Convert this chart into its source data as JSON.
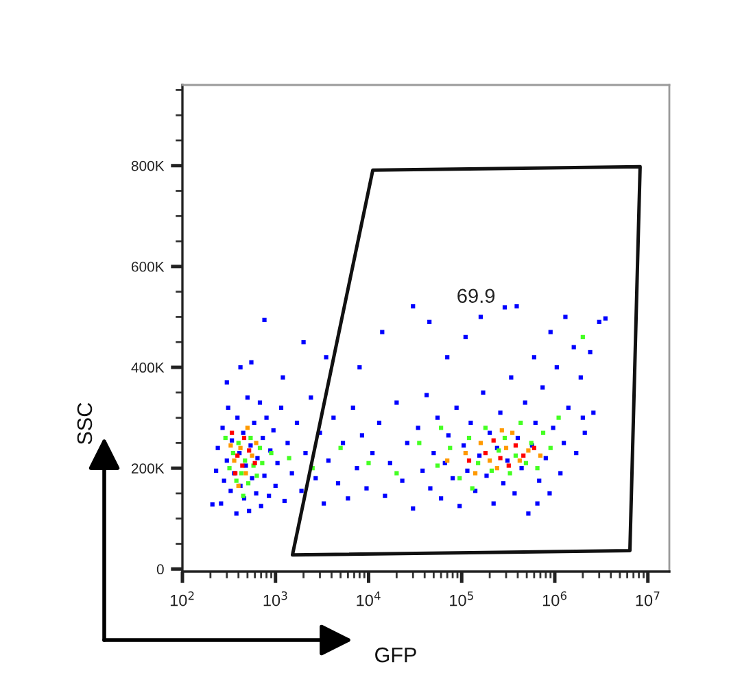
{
  "chart_data": {
    "type": "scatter",
    "xlabel": "GFP",
    "ylabel": "SSC",
    "log": "x",
    "marker": "square",
    "xlim": [
      100,
      17000000
    ],
    "ylim": [
      -5000,
      960000
    ],
    "xticks": [
      {
        "value": 100,
        "label": "10$^{2}$"
      },
      {
        "value": 1000,
        "label": "10$^{3}$"
      },
      {
        "value": 10000,
        "label": "10$^{4}$"
      },
      {
        "value": 100000,
        "label": "10$^{5}$"
      },
      {
        "value": 1000000,
        "label": "10$^{6}$"
      },
      {
        "value": 10000000,
        "label": "10$^{7}$"
      },
      {
        "value": 200,
        "label": null
      },
      {
        "value": 300,
        "label": null
      },
      {
        "value": 400,
        "label": null
      },
      {
        "value": 500,
        "label": null
      },
      {
        "value": 600,
        "label": null
      },
      {
        "value": 700,
        "label": null
      },
      {
        "value": 800,
        "label": null
      },
      {
        "value": 900,
        "label": null
      },
      {
        "value": 2000,
        "label": null
      },
      {
        "value": 3000,
        "label": null
      },
      {
        "value": 4000,
        "label": null
      },
      {
        "value": 5000,
        "label": null
      },
      {
        "value": 6000,
        "label": null
      },
      {
        "value": 7000,
        "label": null
      },
      {
        "value": 8000,
        "label": null
      },
      {
        "value": 9000,
        "label": null
      },
      {
        "value": 20000,
        "label": null
      },
      {
        "value": 30000,
        "label": null
      },
      {
        "value": 40000,
        "label": null
      },
      {
        "value": 50000,
        "label": null
      },
      {
        "value": 60000,
        "label": null
      },
      {
        "value": 70000,
        "label": null
      },
      {
        "value": 80000,
        "label": null
      },
      {
        "value": 90000,
        "label": null
      },
      {
        "value": 200000,
        "label": null
      },
      {
        "value": 300000,
        "label": null
      },
      {
        "value": 400000,
        "label": null
      },
      {
        "value": 500000,
        "label": null
      },
      {
        "value": 600000,
        "label": null
      },
      {
        "value": 700000,
        "label": null
      },
      {
        "value": 800000,
        "label": null
      },
      {
        "value": 900000,
        "label": null
      },
      {
        "value": 2000000,
        "label": null
      },
      {
        "value": 3000000,
        "label": null
      },
      {
        "value": 4000000,
        "label": null
      },
      {
        "value": 5000000,
        "label": null
      },
      {
        "value": 6000000,
        "label": null
      },
      {
        "value": 7000000,
        "label": null
      },
      {
        "value": 8000000,
        "label": null
      },
      {
        "value": 9000000,
        "label": null
      }
    ],
    "yticks": [
      0,
      {
        "value": 200000,
        "label": "200K"
      },
      {
        "value": 400000,
        "label": "400K"
      },
      {
        "value": 600000,
        "label": "600K"
      },
      {
        "value": 800000,
        "label": "800K"
      },
      {
        "value": 50000,
        "label": null
      },
      {
        "value": 100000,
        "label": null
      },
      {
        "value": 150000,
        "label": null
      },
      {
        "value": 250000,
        "label": null
      },
      {
        "value": 300000,
        "label": null
      },
      {
        "value": 350000,
        "label": null
      },
      {
        "value": 450000,
        "label": null
      },
      {
        "value": 500000,
        "label": null
      },
      {
        "value": 550000,
        "label": null
      },
      {
        "value": 650000,
        "label": null
      },
      {
        "value": 700000,
        "label": null
      },
      {
        "value": 750000,
        "label": null
      },
      {
        "value": 850000,
        "label": null
      },
      {
        "value": 900000,
        "label": null
      },
      {
        "value": 950000,
        "label": null
      }
    ],
    "annotations": [
      "69.9"
    ],
    "series": [
      {
        "color": "#0000ff",
        "x": [
          210,
          230,
          240,
          260,
          270,
          280,
          300,
          310,
          330,
          340,
          360,
          380,
          390,
          410,
          420,
          450,
          460,
          480,
          500,
          520,
          540,
          560,
          590,
          620,
          640,
          680,
          700,
          730,
          760,
          800,
          850,
          880,
          950,
          1000,
          1050,
          1150,
          1250,
          1350,
          1500,
          1700,
          1900,
          2100,
          2400,
          2700,
          3000,
          3300,
          3700,
          4200,
          4700,
          5300,
          6000,
          6800,
          7500,
          8500,
          9500,
          11000,
          13000,
          15000,
          17000,
          20000,
          23000,
          26000,
          30000,
          34000,
          38000,
          42000,
          46000,
          50000,
          55000,
          60000,
          66000,
          72000,
          80000,
          88000,
          95000,
          105000,
          115000,
          125000,
          140000,
          155000,
          170000,
          185000,
          200000,
          220000,
          240000,
          260000,
          280000,
          310000,
          340000,
          370000,
          400000,
          440000,
          480000,
          520000,
          570000,
          620000,
          680000,
          740000,
          800000,
          880000,
          960000,
          1050000,
          1150000,
          1250000,
          1400000,
          650000,
          1700000,
          1900000,
          2100000,
          2000000,
          2600000,
          2400000,
          300,
          550,
          760,
          420,
          1200,
          2000,
          3500,
          8000,
          14000,
          30000,
          45000,
          70000,
          110000,
          160000,
          290000,
          390000,
          600000,
          900000,
          1600000,
          3000000,
          3500000,
          1300000
        ],
        "values": [
          128000,
          195000,
          240000,
          130000,
          280000,
          175000,
          215000,
          320000,
          155000,
          255000,
          190000,
          110000,
          300000,
          230000,
          165000,
          270000,
          140000,
          205000,
          340000,
          115000,
          245000,
          180000,
          290000,
          150000,
          220000,
          330000,
          125000,
          260000,
          185000,
          300000,
          145000,
          235000,
          275000,
          165000,
          210000,
          320000,
          135000,
          250000,
          190000,
          290000,
          155000,
          230000,
          340000,
          180000,
          270000,
          130000,
          215000,
          300000,
          170000,
          250000,
          140000,
          320000,
          200000,
          265000,
          160000,
          230000,
          290000,
          145000,
          210000,
          330000,
          175000,
          250000,
          120000,
          280000,
          195000,
          345000,
          160000,
          230000,
          300000,
          140000,
          210000,
          265000,
          180000,
          320000,
          125000,
          245000,
          195000,
          290000,
          155000,
          225000,
          350000,
          185000,
          270000,
          130000,
          240000,
          310000,
          170000,
          215000,
          380000,
          150000,
          260000,
          200000,
          330000,
          110000,
          245000,
          290000,
          175000,
          360000,
          220000,
          150000,
          280000,
          400000,
          190000,
          250000,
          320000,
          130000,
          230000,
          380000,
          270000,
          300000,
          310000,
          430000,
          370000,
          410000,
          494000,
          400000,
          380000,
          450000,
          420000,
          400000,
          470000,
          521000,
          490000,
          420000,
          460000,
          500000,
          519000,
          521000,
          420000,
          470000,
          440000,
          490000,
          497000,
          500000
        ]
      },
      {
        "color": "#44ff22",
        "x": [
          320,
          350,
          380,
          400,
          430,
          470,
          510,
          540,
          580,
          630,
          680,
          290,
          450,
          720,
          900,
          1400,
          2500,
          5000,
          10000,
          20000,
          35000,
          55000,
          75000,
          95000,
          120000,
          150000,
          180000,
          210000,
          250000,
          290000,
          330000,
          380000,
          430000,
          490000,
          560000,
          650000,
          750000,
          900000,
          1100000,
          2000000,
          130000,
          60000
        ],
        "values": [
          200000,
          230000,
          175000,
          250000,
          190000,
          215000,
          170000,
          260000,
          205000,
          185000,
          240000,
          260000,
          145000,
          210000,
          230000,
          220000,
          200000,
          240000,
          210000,
          190000,
          250000,
          205000,
          240000,
          180000,
          260000,
          210000,
          280000,
          195000,
          235000,
          260000,
          190000,
          225000,
          290000,
          210000,
          250000,
          200000,
          270000,
          240000,
          300000,
          460000,
          160000,
          280000
        ]
      },
      {
        "color": "#ff9900",
        "x": [
          360,
          420,
          480,
          560,
          400,
          620,
          330,
          500,
          70000,
          110000,
          160000,
          200000,
          240000,
          300000,
          350000,
          420000,
          520000,
          700000,
          140000,
          270000
        ],
        "values": [
          215000,
          240000,
          190000,
          225000,
          165000,
          250000,
          245000,
          280000,
          215000,
          230000,
          250000,
          215000,
          200000,
          240000,
          270000,
          215000,
          235000,
          225000,
          190000,
          275000
        ]
      },
      {
        "color": "#ff0000",
        "x": [
          390,
          440,
          520,
          370,
          460,
          600,
          340,
          120000,
          180000,
          260000,
          320000,
          380000,
          460000,
          220000,
          600000
        ],
        "values": [
          225000,
          205000,
          235000,
          190000,
          260000,
          210000,
          270000,
          215000,
          230000,
          220000,
          205000,
          245000,
          225000,
          255000,
          240000
        ]
      }
    ]
  }
}
